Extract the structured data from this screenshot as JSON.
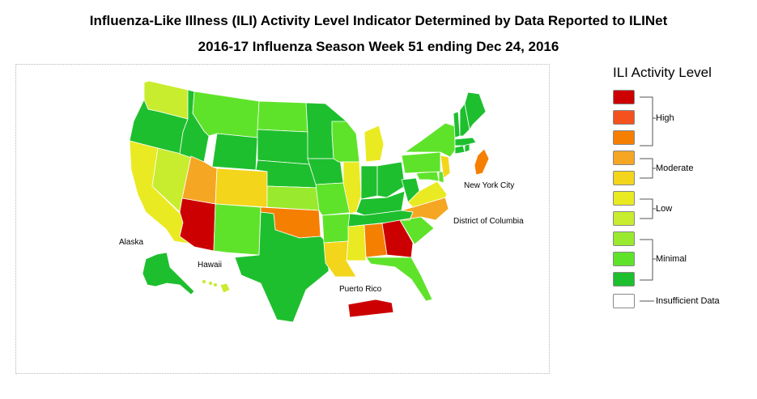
{
  "title_line1": "Influenza-Like Illness (ILI) Activity Level Indicator Determined by Data Reported to ILINet",
  "title_line2": "2016-17 Influenza Season Week 51 ending Dec 24, 2016",
  "map_labels": {
    "alaska": "Alaska",
    "hawaii": "Hawaii",
    "puerto_rico": "Puerto Rico",
    "new_york_city": "New York City",
    "district_of_columbia": "District of Columbia"
  },
  "legend": {
    "title": "ILI Activity Level",
    "levels": [
      {
        "level": 10,
        "color": "#cc0000",
        "group": "High"
      },
      {
        "level": 9,
        "color": "#f4511e",
        "group": "High"
      },
      {
        "level": 8,
        "color": "#f57f00",
        "group": "High"
      },
      {
        "level": 7,
        "color": "#f5a623",
        "group": "Moderate"
      },
      {
        "level": 6,
        "color": "#f3d51b",
        "group": "Moderate"
      },
      {
        "level": 5,
        "color": "#eaea22",
        "group": "Low"
      },
      {
        "level": 4,
        "color": "#c8ec2e",
        "group": "Low"
      },
      {
        "level": 3,
        "color": "#99ea2e",
        "group": "Minimal"
      },
      {
        "level": 2,
        "color": "#5fe32a",
        "group": "Minimal"
      },
      {
        "level": 1,
        "color": "#1ebf2e",
        "group": "Minimal"
      }
    ],
    "group_labels": {
      "high": "High",
      "moderate": "Moderate",
      "low": "Low",
      "minimal": "Minimal",
      "insufficient": "Insufficient Data"
    },
    "insufficient_color": "#ffffff"
  },
  "state_levels": {
    "Washington": 4,
    "Oregon": 1,
    "California": 5,
    "Nevada": 4,
    "Idaho": 1,
    "Montana": 2,
    "Wyoming": 1,
    "Utah": 7,
    "Colorado": 6,
    "Arizona": 10,
    "New Mexico": 2,
    "North Dakota": 2,
    "South Dakota": 1,
    "Nebraska": 1,
    "Kansas": 3,
    "Oklahoma": 8,
    "Texas": 1,
    "Minnesota": 1,
    "Iowa": 1,
    "Missouri": 2,
    "Arkansas": 2,
    "Louisiana": 6,
    "Wisconsin": 2,
    "Illinois": 5,
    "Michigan": 5,
    "Indiana": 1,
    "Ohio": 1,
    "Kentucky": 1,
    "Tennessee": 1,
    "Mississippi": 5,
    "Alabama": 8,
    "Georgia": 10,
    "Florida": 2,
    "South Carolina": 2,
    "North Carolina": 7,
    "Virginia": 5,
    "West Virginia": 1,
    "Maryland": 2,
    "Delaware": 2,
    "New Jersey": 6,
    "Pennsylvania": 2,
    "New York": 2,
    "Connecticut": 1,
    "Rhode Island": 1,
    "Massachusetts": 1,
    "Vermont": 1,
    "New Hampshire": 1,
    "Maine": 1,
    "Alaska": 1,
    "Hawaii": 4,
    "Puerto Rico": 10,
    "New York City": 8,
    "District of Columbia": 0
  }
}
